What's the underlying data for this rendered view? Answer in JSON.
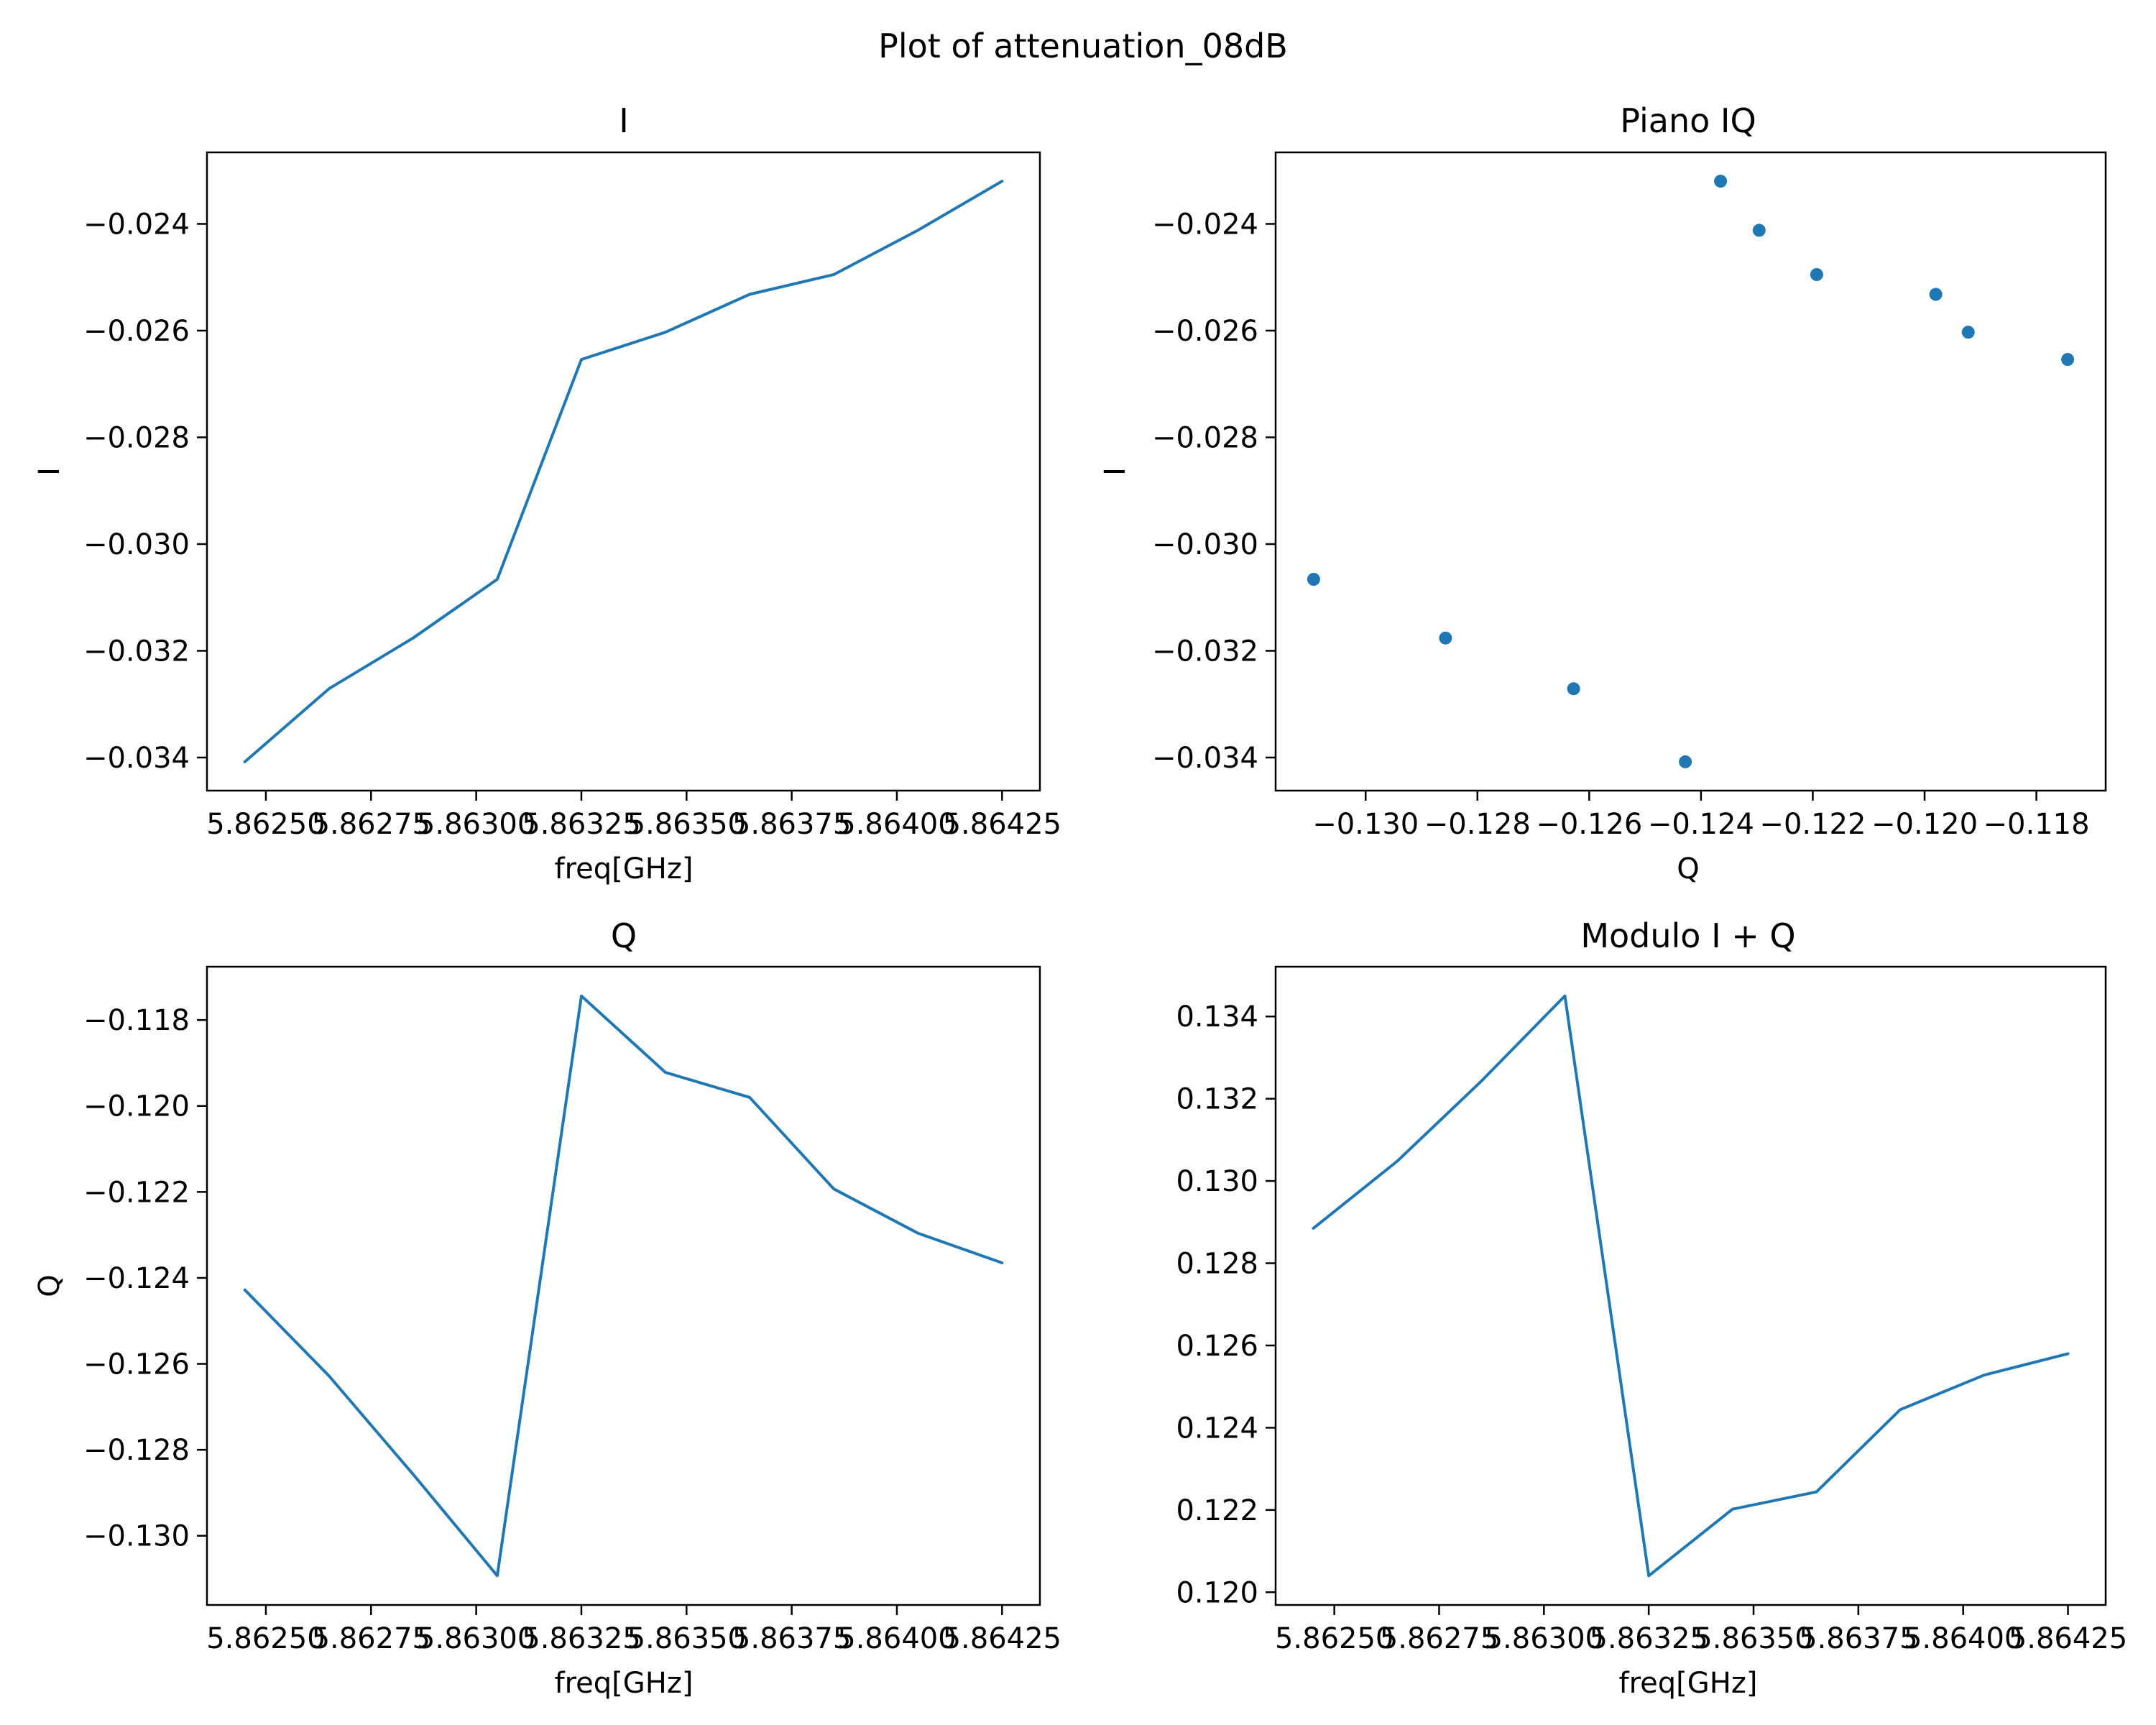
{
  "figure": {
    "title": "Plot of attenuation_08dB"
  },
  "colors": {
    "line": "#1f77b4",
    "axes": "#000000",
    "background": "#ffffff"
  },
  "chart_data": [
    {
      "id": "i",
      "type": "line",
      "title": "I",
      "xlabel": "freq[GHz]",
      "ylabel": "I",
      "x": [
        5.86245,
        5.86265,
        5.86285,
        5.86305,
        5.86325,
        5.86345,
        5.86365,
        5.86385,
        5.86405,
        5.86425
      ],
      "y": [
        -0.03408,
        -0.03271,
        -0.03176,
        -0.03066,
        -0.02654,
        -0.02603,
        -0.02532,
        -0.02495,
        -0.02412,
        -0.0232
      ],
      "xlim": [
        5.86236,
        5.86434
      ],
      "ylim": [
        -0.03462,
        -0.02266
      ],
      "xticks": [
        5.8625,
        5.86275,
        5.863,
        5.86325,
        5.8635,
        5.86375,
        5.864,
        5.86425
      ],
      "xtick_labels": [
        "5.86250",
        "5.86275",
        "5.86300",
        "5.86325",
        "5.86350",
        "5.86375",
        "5.86400",
        "5.86425"
      ],
      "yticks": [
        -0.024,
        -0.026,
        -0.028,
        -0.03,
        -0.032,
        -0.034
      ],
      "ytick_labels": [
        "−0.024",
        "−0.026",
        "−0.028",
        "−0.030",
        "−0.032",
        "−0.034"
      ],
      "grid": false
    },
    {
      "id": "iq",
      "type": "scatter",
      "title": "Piano IQ",
      "xlabel": "Q",
      "ylabel": "I",
      "x": [
        -0.12428,
        -0.12628,
        -0.12857,
        -0.13093,
        -0.11744,
        -0.11922,
        -0.1198,
        -0.12193,
        -0.12296,
        -0.12365
      ],
      "y": [
        -0.03408,
        -0.03271,
        -0.03176,
        -0.03066,
        -0.02654,
        -0.02603,
        -0.02532,
        -0.02495,
        -0.02412,
        -0.0232
      ],
      "xlim": [
        -0.13161,
        -0.11676
      ],
      "ylim": [
        -0.03462,
        -0.02266
      ],
      "xticks": [
        -0.13,
        -0.128,
        -0.126,
        -0.124,
        -0.122,
        -0.12,
        -0.118
      ],
      "xtick_labels": [
        "−0.130",
        "−0.128",
        "−0.126",
        "−0.124",
        "−0.122",
        "−0.120",
        "−0.118"
      ],
      "yticks": [
        -0.024,
        -0.026,
        -0.028,
        -0.03,
        -0.032,
        -0.034
      ],
      "ytick_labels": [
        "−0.024",
        "−0.026",
        "−0.028",
        "−0.030",
        "−0.032",
        "−0.034"
      ],
      "grid": false
    },
    {
      "id": "q",
      "type": "line",
      "title": "Q",
      "xlabel": "freq[GHz]",
      "ylabel": "Q",
      "x": [
        5.86245,
        5.86265,
        5.86285,
        5.86305,
        5.86325,
        5.86345,
        5.86365,
        5.86385,
        5.86405,
        5.86425
      ],
      "y": [
        -0.12428,
        -0.12628,
        -0.12857,
        -0.13093,
        -0.11744,
        -0.11922,
        -0.1198,
        -0.12193,
        -0.12296,
        -0.12365
      ],
      "xlim": [
        5.86236,
        5.86434
      ],
      "ylim": [
        -0.13161,
        -0.11676
      ],
      "xticks": [
        5.8625,
        5.86275,
        5.863,
        5.86325,
        5.8635,
        5.86375,
        5.864,
        5.86425
      ],
      "xtick_labels": [
        "5.86250",
        "5.86275",
        "5.86300",
        "5.86325",
        "5.86350",
        "5.86375",
        "5.86400",
        "5.86425"
      ],
      "yticks": [
        -0.118,
        -0.12,
        -0.122,
        -0.124,
        -0.126,
        -0.128,
        -0.13
      ],
      "ytick_labels": [
        "−0.118",
        "−0.120",
        "−0.122",
        "−0.124",
        "−0.126",
        "−0.128",
        "−0.130"
      ],
      "grid": false
    },
    {
      "id": "mod",
      "type": "line",
      "title": "Modulo I + Q",
      "xlabel": "freq[GHz]",
      "ylabel": "",
      "x": [
        5.86245,
        5.86265,
        5.86285,
        5.86305,
        5.86325,
        5.86345,
        5.86365,
        5.86385,
        5.86405,
        5.86425
      ],
      "y": [
        0.12885,
        0.13048,
        0.13242,
        0.1345,
        0.1204,
        0.12202,
        0.12244,
        0.12444,
        0.12528,
        0.1258
      ],
      "xlim": [
        5.86236,
        5.86434
      ],
      "ylim": [
        0.11969,
        0.13521
      ],
      "xticks": [
        5.8625,
        5.86275,
        5.863,
        5.86325,
        5.8635,
        5.86375,
        5.864,
        5.86425
      ],
      "xtick_labels": [
        "5.86250",
        "5.86275",
        "5.86300",
        "5.86325",
        "5.86350",
        "5.86375",
        "5.86400",
        "5.86425"
      ],
      "yticks": [
        0.134,
        0.132,
        0.13,
        0.128,
        0.126,
        0.124,
        0.122,
        0.12
      ],
      "ytick_labels": [
        "0.134",
        "0.132",
        "0.130",
        "0.128",
        "0.126",
        "0.124",
        "0.122",
        "0.120"
      ],
      "grid": false
    }
  ]
}
